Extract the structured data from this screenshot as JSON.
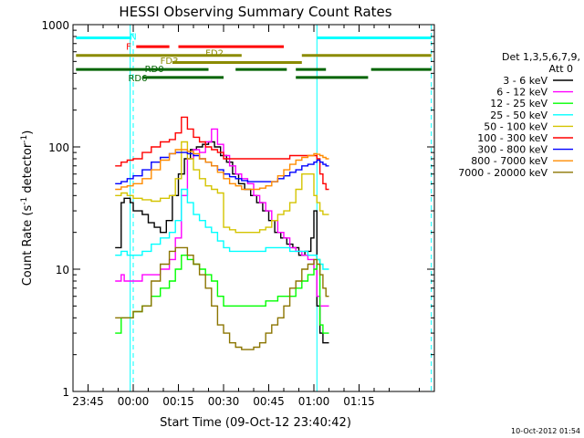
{
  "chart_data": {
    "type": "line",
    "title": "HESSI Observing Summary Count Rates",
    "xlabel": "Start Time (09-Oct-12 23:40:42)",
    "ylabel_main": "Count Rate (s",
    "ylabel_sup1": "-1",
    "ylabel_mid": " detector",
    "ylabel_sup2": "-1",
    "ylabel_end": ")",
    "y_scale": "log",
    "ylim": [
      1,
      1000
    ],
    "xlim_minutes": [
      -20,
      100
    ],
    "x_ticks": [
      {
        "minute": -15,
        "label": "23:45"
      },
      {
        "minute": 0,
        "label": "00:00"
      },
      {
        "minute": 15,
        "label": "00:15"
      },
      {
        "minute": 30,
        "label": "00:30"
      },
      {
        "minute": 45,
        "label": "00:45"
      },
      {
        "minute": 60,
        "label": "01:00"
      },
      {
        "minute": 75,
        "label": "01:15"
      }
    ],
    "y_ticks": [
      {
        "value": 1,
        "label": "1"
      },
      {
        "value": 10,
        "label": "10"
      },
      {
        "value": 100,
        "label": "100"
      },
      {
        "value": 1000,
        "label": "1000"
      }
    ],
    "legend_header": [
      "Det 1,3,5,6,7,9,",
      "Att 0"
    ],
    "legend_placement": "right",
    "series": [
      {
        "name": "3 - 6 keV",
        "color": "#000000",
        "x": [
          -6,
          -4,
          -3,
          -1,
          0,
          3,
          5,
          7,
          9,
          11,
          13,
          15,
          17,
          19,
          21,
          23,
          25,
          27,
          29,
          31,
          33,
          35,
          37,
          39,
          41,
          43,
          45,
          47,
          49,
          51,
          53,
          55,
          57,
          59,
          60,
          61,
          62,
          63,
          64
        ],
        "y": [
          15,
          35,
          38,
          35,
          30,
          28,
          24,
          22,
          20,
          25,
          40,
          60,
          80,
          95,
          100,
          105,
          110,
          100,
          85,
          75,
          60,
          50,
          45,
          40,
          35,
          30,
          25,
          20,
          18,
          16,
          15,
          13,
          14,
          18,
          30,
          5,
          3,
          2.5,
          2.5
        ]
      },
      {
        "name": "6 - 12 keV",
        "color": "#ff00ff",
        "x": [
          -6,
          -4,
          -3,
          0,
          3,
          6,
          9,
          12,
          14,
          16,
          18,
          20,
          22,
          24,
          26,
          28,
          30,
          32,
          34,
          36,
          38,
          40,
          42,
          44,
          46,
          48,
          50,
          52,
          54,
          56,
          58,
          60,
          61,
          62,
          63,
          64
        ],
        "y": [
          8,
          9,
          8,
          8,
          9,
          9,
          10,
          12,
          18,
          40,
          80,
          95,
          90,
          110,
          140,
          105,
          85,
          70,
          60,
          55,
          50,
          40,
          35,
          30,
          25,
          20,
          18,
          15,
          14,
          13,
          12,
          10,
          6,
          5,
          5,
          5
        ]
      },
      {
        "name": "12 - 25 keV",
        "color": "#00ff00",
        "x": [
          -6,
          -4,
          -2,
          0,
          3,
          6,
          9,
          12,
          14,
          16,
          18,
          20,
          22,
          24,
          26,
          28,
          30,
          32,
          34,
          36,
          38,
          40,
          42,
          44,
          46,
          48,
          50,
          52,
          54,
          56,
          58,
          60,
          61,
          62,
          63,
          64
        ],
        "y": [
          3,
          4,
          4,
          4.5,
          5,
          6,
          7,
          8,
          10,
          13,
          12,
          11,
          10,
          9,
          8,
          6,
          5,
          5,
          5,
          5,
          5,
          5,
          5,
          5.5,
          5.5,
          6,
          6,
          6,
          7,
          8,
          9,
          10,
          12,
          3.5,
          3,
          3
        ]
      },
      {
        "name": "25 - 50 keV",
        "color": "#00ffff",
        "x": [
          -6,
          -4,
          -2,
          0,
          3,
          6,
          9,
          12,
          14,
          16,
          18,
          20,
          22,
          24,
          26,
          28,
          30,
          32,
          34,
          36,
          38,
          40,
          42,
          44,
          46,
          48,
          50,
          52,
          54,
          56,
          58,
          60,
          61,
          62,
          63,
          64
        ],
        "y": [
          13,
          14,
          13,
          13,
          14,
          16,
          18,
          20,
          25,
          45,
          35,
          28,
          25,
          22,
          20,
          17,
          15,
          14,
          14,
          14,
          14,
          14,
          14,
          15,
          15,
          15,
          15,
          14,
          14,
          14,
          13,
          13,
          12,
          11,
          10,
          10
        ]
      },
      {
        "name": "50 - 100 keV",
        "color": "#d4c400",
        "x": [
          -6,
          -4,
          -2,
          0,
          3,
          6,
          9,
          12,
          14,
          16,
          18,
          20,
          22,
          24,
          26,
          28,
          30,
          32,
          34,
          36,
          38,
          40,
          42,
          44,
          46,
          48,
          50,
          52,
          54,
          56,
          58,
          60,
          61,
          62,
          63,
          64
        ],
        "y": [
          40,
          42,
          40,
          38,
          37,
          36,
          38,
          40,
          55,
          110,
          80,
          65,
          55,
          48,
          45,
          42,
          22,
          21,
          20,
          20,
          20,
          20,
          21,
          22,
          25,
          28,
          30,
          35,
          45,
          60,
          60,
          40,
          35,
          30,
          28,
          28
        ]
      },
      {
        "name": "100 - 300 keV",
        "color": "#ff0000",
        "x": [
          -6,
          -4,
          -2,
          0,
          3,
          6,
          9,
          12,
          14,
          16,
          18,
          20,
          22,
          24,
          26,
          28,
          30,
          32,
          34,
          36,
          38,
          40,
          42,
          44,
          46,
          48,
          50,
          52,
          54,
          56,
          58,
          60,
          61,
          62,
          63,
          64
        ],
        "y": [
          70,
          75,
          78,
          80,
          90,
          100,
          110,
          115,
          130,
          175,
          140,
          120,
          110,
          100,
          95,
          90,
          80,
          80,
          80,
          80,
          80,
          80,
          80,
          80,
          80,
          80,
          80,
          85,
          85,
          85,
          85,
          85,
          80,
          60,
          50,
          45
        ]
      },
      {
        "name": "300 - 800 keV",
        "color": "#0000ff",
        "x": [
          -6,
          -4,
          -2,
          0,
          3,
          6,
          9,
          12,
          14,
          16,
          18,
          20,
          22,
          24,
          26,
          28,
          30,
          32,
          34,
          36,
          38,
          40,
          42,
          44,
          46,
          48,
          50,
          52,
          54,
          56,
          58,
          60,
          61,
          62,
          63,
          64
        ],
        "y": [
          50,
          52,
          55,
          58,
          65,
          75,
          82,
          88,
          90,
          90,
          88,
          85,
          80,
          75,
          70,
          65,
          60,
          57,
          55,
          53,
          52,
          52,
          52,
          52,
          52,
          55,
          58,
          62,
          65,
          70,
          72,
          75,
          78,
          75,
          72,
          70
        ]
      },
      {
        "name": "800 - 7000 keV",
        "color": "#ff8c00",
        "x": [
          -6,
          -4,
          -2,
          0,
          3,
          6,
          9,
          12,
          14,
          16,
          18,
          20,
          22,
          24,
          26,
          28,
          30,
          32,
          34,
          36,
          38,
          40,
          42,
          44,
          46,
          48,
          50,
          52,
          54,
          56,
          58,
          60,
          61,
          62,
          63,
          64
        ],
        "y": [
          45,
          47,
          48,
          50,
          55,
          65,
          78,
          88,
          95,
          95,
          92,
          88,
          80,
          75,
          70,
          62,
          55,
          50,
          48,
          45,
          45,
          45,
          46,
          48,
          52,
          58,
          65,
          72,
          78,
          82,
          85,
          88,
          87,
          85,
          82,
          80
        ]
      },
      {
        "name": "7000 - 20000 keV",
        "color": "#8b7500",
        "x": [
          -6,
          -4,
          -2,
          0,
          3,
          6,
          9,
          12,
          14,
          16,
          18,
          20,
          22,
          24,
          26,
          28,
          30,
          32,
          34,
          36,
          38,
          40,
          42,
          44,
          46,
          48,
          50,
          52,
          54,
          56,
          58,
          60,
          61,
          62,
          63,
          64
        ],
        "y": [
          4,
          4,
          4,
          4.5,
          5,
          8,
          11,
          14,
          15,
          15,
          13,
          11,
          9,
          7,
          5,
          3.5,
          3,
          2.5,
          2.3,
          2.2,
          2.2,
          2.3,
          2.5,
          3,
          3.5,
          4,
          5,
          7,
          8,
          10,
          11,
          12,
          11,
          9,
          7,
          6
        ]
      }
    ],
    "status_labels": [
      {
        "name": "N",
        "color": "#00ffff",
        "segments": [
          [
            -19,
            -1
          ],
          [
            61,
            99
          ]
        ],
        "y": 780,
        "label_minute": 0,
        "label_y": 810
      },
      {
        "name": "F",
        "color": "#ff0000",
        "segments": [
          [
            1,
            12
          ],
          [
            15,
            50
          ]
        ],
        "y": 660,
        "label_minute": -1.5,
        "label_y": 670
      },
      {
        "name": "FD2",
        "color": "#8b8b00",
        "segments": [
          [
            -19,
            36
          ],
          [
            56,
            99
          ]
        ],
        "y": 560,
        "label_minute": 27,
        "label_y": 590
      },
      {
        "name": "FD3",
        "color": "#8b8b00",
        "segments": [
          [
            13,
            56
          ]
        ],
        "y": 490,
        "label_minute": 12,
        "label_y": 510
      },
      {
        "name": "RD0",
        "color": "#006400",
        "segments": [
          [
            -19,
            25
          ],
          [
            34,
            51
          ],
          [
            54,
            64
          ],
          [
            79,
            99
          ]
        ],
        "y": 430,
        "label_minute": 7,
        "label_y": 440
      },
      {
        "name": "RD6",
        "color": "#006400",
        "segments": [
          [
            3,
            30
          ],
          [
            54,
            78
          ]
        ],
        "y": 370,
        "label_minute": 1.5,
        "label_y": 370
      }
    ],
    "vertical_markers": [
      {
        "minute": -1,
        "color": "#00ffff",
        "style": "solid"
      },
      {
        "minute": 0,
        "color": "#00ffff",
        "style": "dashed"
      },
      {
        "minute": 61,
        "color": "#00ffff",
        "style": "solid"
      },
      {
        "minute": 99,
        "color": "#00ffff",
        "style": "dashed"
      }
    ],
    "footer_timestamp": "10-Oct-2012 01:54"
  }
}
